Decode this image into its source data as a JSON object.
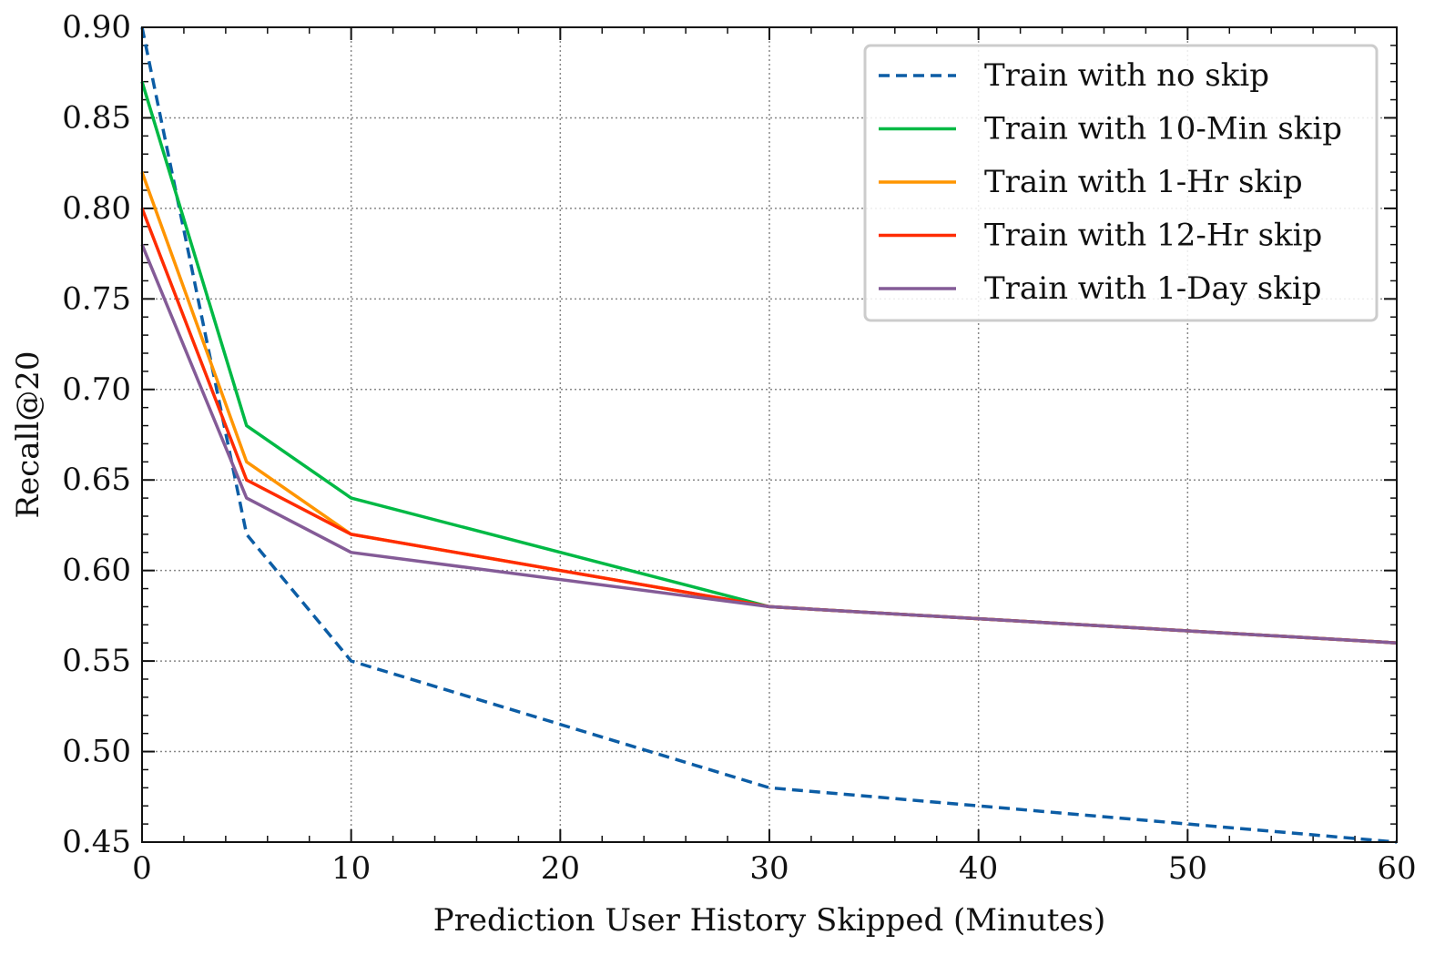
{
  "chart_data": {
    "type": "line",
    "title": "",
    "xlabel": "Prediction User History Skipped (Minutes)",
    "ylabel": "Recall@20",
    "xlim": [
      0,
      60
    ],
    "ylim": [
      0.45,
      0.9
    ],
    "xticks": [
      "0",
      "10",
      "20",
      "30",
      "40",
      "50",
      "60"
    ],
    "yticks": [
      "0.45",
      "0.50",
      "0.55",
      "0.60",
      "0.65",
      "0.70",
      "0.75",
      "0.80",
      "0.85",
      "0.90"
    ],
    "grid": true,
    "legend_position": "top-right",
    "x": [
      0,
      5,
      10,
      30,
      60
    ],
    "series": [
      {
        "name": "Train with no skip",
        "color": "#0c5da5",
        "dashed": true,
        "values": [
          0.9,
          0.62,
          0.55,
          0.48,
          0.45
        ]
      },
      {
        "name": "Train with 10-Min skip",
        "color": "#00b945",
        "dashed": false,
        "values": [
          0.87,
          0.68,
          0.64,
          0.58,
          0.56
        ]
      },
      {
        "name": "Train with 1-Hr skip",
        "color": "#ff9500",
        "dashed": false,
        "values": [
          0.82,
          0.66,
          0.62,
          0.58,
          0.56
        ]
      },
      {
        "name": "Train with 12-Hr skip",
        "color": "#ff2c00",
        "dashed": false,
        "values": [
          0.8,
          0.65,
          0.62,
          0.58,
          0.56
        ]
      },
      {
        "name": "Train with 1-Day skip",
        "color": "#845b97",
        "dashed": false,
        "values": [
          0.78,
          0.64,
          0.61,
          0.58,
          0.56
        ]
      }
    ]
  }
}
